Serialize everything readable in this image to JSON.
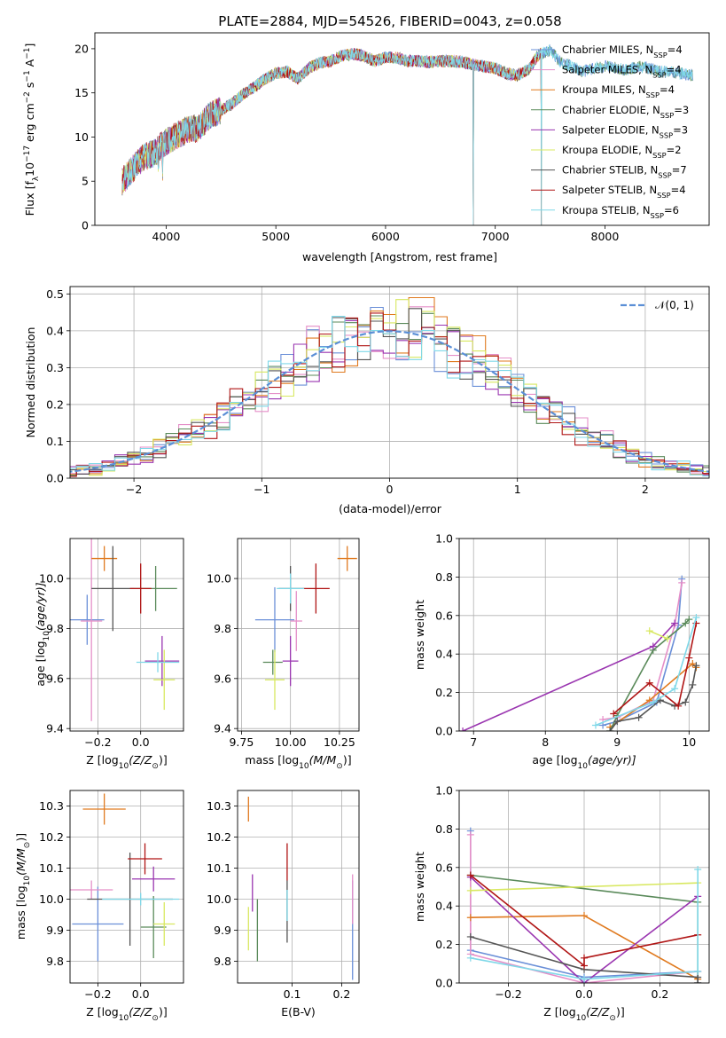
{
  "title": "PLATE=2884, MJD=54526, FIBERID=0043, z=0.058",
  "colors": {
    "c1": "#6a8fd8",
    "c2": "#e58fc8",
    "c3": "#e07a1f",
    "c4": "#5a8a5a",
    "c5": "#9a35b0",
    "c6": "#d8e860",
    "c7": "#555555",
    "c8": "#b01515",
    "c9": "#7fd8e8",
    "gauss": "#5b8fd6",
    "grid": "#b0b0b0"
  },
  "legend": {
    "models": [
      {
        "main": "Chabrier MILES, N",
        "sub": "SSP",
        "end": "=4",
        "color": "c1"
      },
      {
        "main": "Salpeter MILES, N",
        "sub": "SSP",
        "end": "=4",
        "color": "c2"
      },
      {
        "main": "Kroupa MILES, N",
        "sub": "SSP",
        "end": "=4",
        "color": "c3"
      },
      {
        "main": "Chabrier ELODIE, N",
        "sub": "SSP",
        "end": "=3",
        "color": "c4"
      },
      {
        "main": "Salpeter ELODIE, N",
        "sub": "SSP",
        "end": "=3",
        "color": "c5"
      },
      {
        "main": "Kroupa ELODIE, N",
        "sub": "SSP",
        "end": "=2",
        "color": "c6"
      },
      {
        "main": "Chabrier STELIB, N",
        "sub": "SSP",
        "end": "=7",
        "color": "c7"
      },
      {
        "main": "Salpeter STELIB, N",
        "sub": "SSP",
        "end": "=4",
        "color": "c8"
      },
      {
        "main": "Kroupa STELIB, N",
        "sub": "SSP",
        "end": "=6",
        "color": "c9"
      }
    ],
    "gauss": "𝒩(0, 1)"
  },
  "chart_data": [
    {
      "panel": "spectrum",
      "type": "line",
      "xlabel": "wavelength [Angstrom, rest frame]",
      "ylabel_parts": [
        "Flux [f",
        "λ",
        "10",
        "−17",
        " erg cm",
        "−2",
        " s",
        "−1",
        " A",
        "−1",
        "]"
      ],
      "xlim": [
        3350,
        8950
      ],
      "ylim": [
        0,
        21.8
      ],
      "xticks": [
        4000,
        5000,
        6000,
        7000,
        8000
      ],
      "yticks": [
        0,
        5,
        10,
        15,
        20
      ],
      "continuum": [
        [
          3600,
          5.0
        ],
        [
          3700,
          6.5
        ],
        [
          3800,
          7.8
        ],
        [
          3900,
          8.2
        ],
        [
          3950,
          9.0
        ],
        [
          4000,
          9.5
        ],
        [
          4100,
          10.2
        ],
        [
          4200,
          10.8
        ],
        [
          4300,
          11.0
        ],
        [
          4400,
          12.5
        ],
        [
          4500,
          13.0
        ],
        [
          4600,
          13.8
        ],
        [
          4700,
          14.8
        ],
        [
          4800,
          15.6
        ],
        [
          4900,
          16.6
        ],
        [
          5000,
          17.2
        ],
        [
          5100,
          17.4
        ],
        [
          5200,
          16.6
        ],
        [
          5300,
          17.8
        ],
        [
          5400,
          18.4
        ],
        [
          5500,
          18.6
        ],
        [
          5600,
          19.2
        ],
        [
          5700,
          19.4
        ],
        [
          5800,
          19.2
        ],
        [
          5900,
          18.6
        ],
        [
          6000,
          19.0
        ],
        [
          6100,
          19.0
        ],
        [
          6200,
          18.6
        ],
        [
          6300,
          18.6
        ],
        [
          6400,
          18.5
        ],
        [
          6500,
          18.6
        ],
        [
          6600,
          18.6
        ],
        [
          6700,
          18.5
        ],
        [
          6800,
          18.2
        ],
        [
          6900,
          18.0
        ],
        [
          7000,
          17.8
        ],
        [
          7100,
          17.2
        ],
        [
          7200,
          17.0
        ],
        [
          7300,
          17.6
        ],
        [
          7400,
          19.4
        ],
        [
          7500,
          19.8
        ],
        [
          7600,
          18.4
        ],
        [
          7700,
          18.0
        ],
        [
          7800,
          17.4
        ],
        [
          7900,
          17.8
        ],
        [
          8000,
          18.0
        ],
        [
          8100,
          17.8
        ],
        [
          8200,
          17.6
        ],
        [
          8300,
          18.0
        ],
        [
          8400,
          17.8
        ],
        [
          8500,
          17.4
        ],
        [
          8600,
          17.4
        ],
        [
          8700,
          17.2
        ],
        [
          8800,
          17.0
        ]
      ],
      "end_wavelengths": [
        8800,
        7420,
        7420,
        8800,
        7420,
        7420,
        7420,
        7420,
        8800
      ],
      "dips": [
        [
          3930,
          6.0
        ],
        [
          3968,
          5.0
        ],
        [
          6800,
          0
        ],
        [
          7420,
          0
        ]
      ]
    },
    {
      "panel": "residual-histogram",
      "type": "histogram",
      "xlabel": "(data-model)/error",
      "ylabel": "Normed distribution",
      "xlim": [
        -2.5,
        2.5
      ],
      "ylim": [
        0,
        0.52
      ],
      "xticks": [
        -2,
        -1,
        0,
        1,
        2
      ],
      "yticks": [
        0.0,
        0.1,
        0.2,
        0.3,
        0.4,
        0.5
      ],
      "bin_width": 0.1
    },
    {
      "panel": "age-vs-Z",
      "type": "errorbar",
      "xlabel_parts": [
        "Z [log",
        "10",
        "(Z/Z",
        "⊙",
        ")]"
      ],
      "ylabel_parts": [
        "age  [log",
        "10",
        "(age/yr)]"
      ],
      "xlim": [
        -0.33,
        0.2
      ],
      "ylim": [
        9.39,
        10.16
      ],
      "xticks": [
        -0.2,
        0.0
      ],
      "yticks": [
        9.4,
        9.6,
        9.8,
        10.0
      ],
      "points": [
        {
          "x": -0.25,
          "xerr": 0.08,
          "y": 9.835,
          "yerr": 0.1,
          "color": "c1"
        },
        {
          "x": -0.23,
          "xerr": 0.05,
          "y": 9.83,
          "yerr": 0.4,
          "color": "c2"
        },
        {
          "x": -0.17,
          "xerr": 0.06,
          "y": 10.08,
          "yerr": 0.05,
          "color": "c3"
        },
        {
          "x": 0.07,
          "xerr": 0.1,
          "y": 9.96,
          "yerr": 0.09,
          "color": "c4"
        },
        {
          "x": 0.1,
          "xerr": 0.08,
          "y": 9.67,
          "yerr": 0.1,
          "color": "c5"
        },
        {
          "x": 0.11,
          "xerr": 0.05,
          "y": 9.595,
          "yerr": 0.12,
          "color": "c6"
        },
        {
          "x": -0.13,
          "xerr": 0.1,
          "y": 9.96,
          "yerr": 0.17,
          "color": "c7"
        },
        {
          "x": 0.0,
          "xerr": 0.05,
          "y": 9.96,
          "yerr": 0.1,
          "color": "c8"
        },
        {
          "x": 0.08,
          "xerr": 0.1,
          "y": 9.665,
          "yerr": 0.04,
          "color": "c9"
        }
      ]
    },
    {
      "panel": "age-vs-mass",
      "type": "errorbar",
      "xlabel_parts": [
        "mass [log",
        "10",
        "(M/M",
        "⊙",
        ")]"
      ],
      "xlim": [
        9.73,
        10.35
      ],
      "ylim": [
        9.39,
        10.16
      ],
      "xticks": [
        9.75,
        10.0,
        10.25
      ],
      "yticks": [
        9.4,
        9.6,
        9.8,
        10.0
      ],
      "points": [
        {
          "x": 9.92,
          "xerr": 0.1,
          "y": 9.835,
          "yerr": 0.13,
          "color": "c1"
        },
        {
          "x": 10.03,
          "xerr": 0.03,
          "y": 9.83,
          "yerr": 0.12,
          "color": "c2"
        },
        {
          "x": 10.29,
          "xerr": 0.05,
          "y": 10.08,
          "yerr": 0.05,
          "color": "c3"
        },
        {
          "x": 9.91,
          "xerr": 0.05,
          "y": 9.665,
          "yerr": 0.05,
          "color": "c4"
        },
        {
          "x": 10.0,
          "xerr": 0.04,
          "y": 9.67,
          "yerr": 0.1,
          "color": "c5"
        },
        {
          "x": 9.92,
          "xerr": 0.05,
          "y": 9.595,
          "yerr": 0.12,
          "color": "c6"
        },
        {
          "x": 10.0,
          "xerr": 0.06,
          "y": 9.96,
          "yerr": 0.09,
          "color": "c7"
        },
        {
          "x": 10.13,
          "xerr": 0.07,
          "y": 9.96,
          "yerr": 0.1,
          "color": "c8"
        },
        {
          "x": 10.0,
          "xerr": 0.07,
          "y": 9.96,
          "yerr": 0.06,
          "color": "c9"
        }
      ]
    },
    {
      "panel": "weight-vs-age",
      "type": "line",
      "xlabel_parts": [
        "age  [log",
        "10",
        "(age/yr)]"
      ],
      "ylabel": "mass weight",
      "xlim": [
        6.8,
        10.28
      ],
      "ylim": [
        0,
        1.0
      ],
      "xticks": [
        7,
        8,
        9,
        10
      ],
      "yticks": [
        0.0,
        0.2,
        0.4,
        0.6,
        0.8,
        1.0
      ],
      "series": [
        {
          "color": "c1",
          "x": [
            8.8,
            9.0,
            9.55,
            9.85,
            9.9
          ],
          "y": [
            0.03,
            0.05,
            0.15,
            0.55,
            0.79
          ]
        },
        {
          "color": "c2",
          "x": [
            8.8,
            9.0,
            9.5,
            9.8,
            9.9
          ],
          "y": [
            0.06,
            0.07,
            0.16,
            0.55,
            0.77
          ]
        },
        {
          "color": "c3",
          "x": [
            8.9,
            9.45,
            10.05,
            10.1
          ],
          "y": [
            0.02,
            0.16,
            0.35,
            0.33
          ]
        },
        {
          "color": "c4",
          "x": [
            8.9,
            9.0,
            9.5,
            9.95,
            10.0
          ],
          "y": [
            0.0,
            0.08,
            0.42,
            0.56,
            0.58
          ]
        },
        {
          "color": "c5",
          "x": [
            6.85,
            9.5,
            9.8
          ],
          "y": [
            0.0,
            0.44,
            0.56
          ]
        },
        {
          "color": "c6",
          "x": [
            9.45,
            9.7
          ],
          "y": [
            0.52,
            0.48
          ]
        },
        {
          "color": "c7",
          "x": [
            8.9,
            9.0,
            9.3,
            9.6,
            9.8,
            9.95,
            10.05,
            10.1
          ],
          "y": [
            0.0,
            0.05,
            0.07,
            0.16,
            0.13,
            0.15,
            0.24,
            0.34
          ]
        },
        {
          "color": "c8",
          "x": [
            8.95,
            9.45,
            9.85,
            10.0,
            10.1
          ],
          "y": [
            0.09,
            0.25,
            0.13,
            0.38,
            0.56
          ]
        },
        {
          "color": "c9",
          "x": [
            8.7,
            9.5,
            9.8,
            10.1
          ],
          "y": [
            0.03,
            0.15,
            0.22,
            0.59
          ]
        }
      ]
    },
    {
      "panel": "mass-vs-Z",
      "type": "errorbar",
      "xlabel_parts": [
        "Z [log",
        "10",
        "(Z/Z",
        "⊙",
        ")]"
      ],
      "ylabel_parts": [
        "mass [log",
        "10",
        "(M/M",
        "⊙",
        ")]"
      ],
      "xlim": [
        -0.33,
        0.2
      ],
      "ylim": [
        9.73,
        10.35
      ],
      "xticks": [
        -0.2,
        0.0
      ],
      "yticks": [
        9.8,
        9.9,
        10.0,
        10.1,
        10.2,
        10.3
      ],
      "points": [
        {
          "x": -0.2,
          "xerr": 0.12,
          "y": 9.92,
          "yerr": 0.12,
          "color": "c1"
        },
        {
          "x": -0.23,
          "xerr": 0.1,
          "y": 10.03,
          "yerr": 0.03,
          "color": "c2"
        },
        {
          "x": -0.17,
          "xerr": 0.1,
          "y": 10.29,
          "yerr": 0.05,
          "color": "c3"
        },
        {
          "x": 0.06,
          "xerr": 0.06,
          "y": 9.91,
          "yerr": 0.1,
          "color": "c4"
        },
        {
          "x": 0.06,
          "xerr": 0.1,
          "y": 10.065,
          "yerr": 0.04,
          "color": "c5"
        },
        {
          "x": 0.11,
          "xerr": 0.05,
          "y": 9.92,
          "yerr": 0.07,
          "color": "c6"
        },
        {
          "x": -0.05,
          "xerr": 0.2,
          "y": 10.0,
          "yerr": 0.15,
          "color": "c7"
        },
        {
          "x": 0.02,
          "xerr": 0.08,
          "y": 10.13,
          "yerr": 0.05,
          "color": "c8"
        },
        {
          "x": 0.0,
          "xerr": 0.18,
          "y": 10.0,
          "yerr": 0.02,
          "color": "c9"
        }
      ]
    },
    {
      "panel": "mass-vs-EBV",
      "type": "errorbar",
      "xlabel": "E(B-V)",
      "xlim": [
        -0.01,
        0.235
      ],
      "ylim": [
        9.73,
        10.35
      ],
      "xticks": [
        0.1,
        0.2
      ],
      "yticks": [
        9.8,
        9.9,
        10.0,
        10.1,
        10.2,
        10.3
      ],
      "points": [
        {
          "x": 0.222,
          "yerr": 0.16,
          "y": 9.9,
          "color": "c1"
        },
        {
          "x": 0.222,
          "yerr": 0.08,
          "y": 10.0,
          "color": "c2"
        },
        {
          "x": 0.012,
          "yerr": 0.04,
          "y": 10.29,
          "color": "c3"
        },
        {
          "x": 0.03,
          "yerr": 0.1,
          "y": 9.9,
          "color": "c4"
        },
        {
          "x": 0.02,
          "yerr": 0.06,
          "y": 10.02,
          "color": "c5"
        },
        {
          "x": 0.012,
          "yerr": 0.07,
          "y": 9.905,
          "color": "c6"
        },
        {
          "x": 0.09,
          "yerr": 0.1,
          "y": 9.96,
          "color": "c7"
        },
        {
          "x": 0.09,
          "yerr": 0.06,
          "y": 10.12,
          "color": "c8"
        },
        {
          "x": 0.09,
          "yerr": 0.05,
          "y": 9.98,
          "color": "c9"
        }
      ]
    },
    {
      "panel": "weight-vs-Z",
      "type": "line",
      "xlabel_parts": [
        "Z [log",
        "10",
        "(Z/Z",
        "⊙",
        ")]"
      ],
      "ylabel": "mass weight",
      "xlim": [
        -0.33,
        0.33
      ],
      "ylim": [
        0,
        1.0
      ],
      "xticks": [
        -0.2,
        0.0,
        0.2
      ],
      "yticks": [
        0.0,
        0.2,
        0.4,
        0.6,
        0.8,
        1.0
      ],
      "series": [
        {
          "color": "c1",
          "x": [
            -0.3,
            -0.3,
            0.0,
            0.3,
            0.3
          ],
          "y": [
            0.79,
            0.17,
            0.03,
            0.06,
            0.0
          ]
        },
        {
          "color": "c2",
          "x": [
            -0.3,
            -0.3,
            0.0,
            0.3,
            0.3
          ],
          "y": [
            0.77,
            0.15,
            0.0,
            0.06,
            0.0
          ]
        },
        {
          "color": "c3",
          "x": [
            -0.3,
            0.0,
            0.3
          ],
          "y": [
            0.34,
            0.35,
            0.02
          ]
        },
        {
          "color": "c4",
          "x": [
            -0.3,
            0.3,
            0.3
          ],
          "y": [
            0.56,
            0.42,
            0.0
          ]
        },
        {
          "color": "c5",
          "x": [
            -0.3,
            0.0,
            0.3
          ],
          "y": [
            0.55,
            0.0,
            0.45
          ]
        },
        {
          "color": "c6",
          "x": [
            -0.3,
            0.3
          ],
          "y": [
            0.48,
            0.52
          ]
        },
        {
          "color": "c7",
          "x": [
            -0.3,
            0.0,
            0.3,
            0.3
          ],
          "y": [
            0.24,
            0.07,
            0.03,
            0.0
          ]
        },
        {
          "color": "c8",
          "x": [
            -0.3,
            0.0,
            0.0,
            0.3
          ],
          "y": [
            0.56,
            0.09,
            0.13,
            0.25
          ]
        },
        {
          "color": "c9",
          "x": [
            -0.3,
            0.0,
            0.3,
            0.3
          ],
          "y": [
            0.13,
            0.02,
            0.06,
            0.59
          ]
        }
      ]
    }
  ]
}
